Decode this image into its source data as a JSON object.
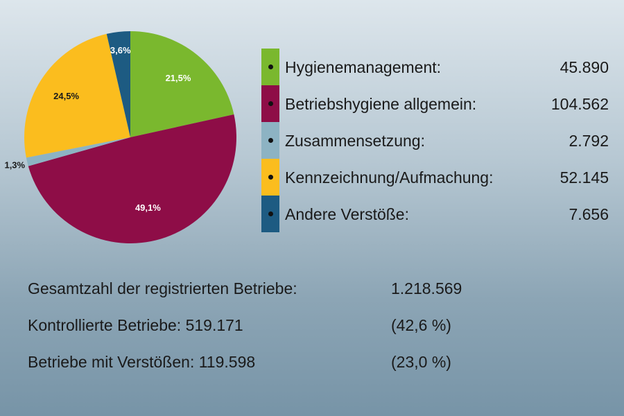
{
  "chart_data": {
    "type": "pie",
    "title": "",
    "slices": [
      {
        "name": "Hygienemanagement:",
        "value": 45890,
        "percent_label": "21,5%",
        "percent": 21.5,
        "color": "#7ab82e",
        "label_color": "#ffffff"
      },
      {
        "name": "Betriebshygiene allgemein:",
        "value": 104562,
        "percent_label": "49,1%",
        "percent": 49.1,
        "color": "#8e0d47",
        "label_color": "#ffffff"
      },
      {
        "name": "Zusammensetzung:",
        "value": 2792,
        "percent_label": "1,3%",
        "percent": 1.3,
        "color": "#8db3c3",
        "label_color": "#1a1a1a"
      },
      {
        "name": "Kennzeichnung/Aufmachung:",
        "value": 52145,
        "percent_label": "24,5%",
        "percent": 24.5,
        "color": "#fbbd1e",
        "label_color": "#1a1a1a"
      },
      {
        "name": "Andere Verstöße:",
        "value": 7656,
        "percent_label": "3,6%",
        "percent": 3.6,
        "color": "#1d5b82",
        "label_color": "#ffffff"
      }
    ]
  },
  "legend": {
    "items": [
      {
        "label": "Hygienemanagement:",
        "value": "45.890"
      },
      {
        "label": "Betriebshygiene allgemein:",
        "value": "104.562"
      },
      {
        "label": "Zusammensetzung:",
        "value": "2.792"
      },
      {
        "label": "Kennzeichnung/Aufmachung:",
        "value": "52.145"
      },
      {
        "label": "Andere Verstöße:",
        "value": "7.656"
      }
    ]
  },
  "stats": {
    "rows": [
      {
        "label": "Gesamtzahl der registrierten Betriebe:",
        "value": "1.218.569"
      },
      {
        "label": "Kontrollierte Betriebe: 519.171",
        "value": "(42,6 %)"
      },
      {
        "label": "Betriebe mit Verstößen: 119.598",
        "value": "(23,0 %)"
      }
    ]
  }
}
